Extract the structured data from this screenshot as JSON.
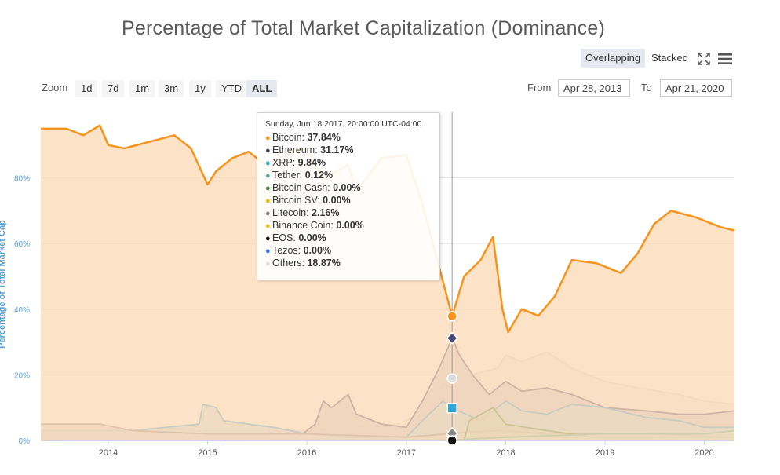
{
  "title": "Percentage of Total Market Capitalization (Dominance)",
  "view_modes": {
    "overlapping": "Overlapping",
    "stacked": "Stacked",
    "active": "Overlapping"
  },
  "icons": {
    "fullscreen": "fullscreen-icon",
    "menu": "menu-icon"
  },
  "zoom": {
    "label": "Zoom",
    "buttons": [
      "1d",
      "7d",
      "1m",
      "3m",
      "1y",
      "YTD",
      "ALL"
    ],
    "active": "ALL"
  },
  "range": {
    "from_label": "From",
    "from_value": "Apr 28, 2013",
    "to_label": "To",
    "to_value": "Apr 21, 2020"
  },
  "tooltip": {
    "header": "Sunday, Jun 18 2017, 20:00:00 UTC-04:00",
    "rows": [
      {
        "name": "Bitcoin",
        "value": "37.84%",
        "color": "#f7931a"
      },
      {
        "name": "Ethereum",
        "value": "31.17%",
        "color": "#454a75"
      },
      {
        "name": "XRP",
        "value": "9.84%",
        "color": "#2fa7da"
      },
      {
        "name": "Tether",
        "value": "0.12%",
        "color": "#50af95"
      },
      {
        "name": "Bitcoin Cash",
        "value": "0.00%",
        "color": "#3e8a3a"
      },
      {
        "name": "Bitcoin SV",
        "value": "0.00%",
        "color": "#eab300"
      },
      {
        "name": "Litecoin",
        "value": "2.16%",
        "color": "#888888"
      },
      {
        "name": "Binance Coin",
        "value": "0.00%",
        "color": "#f0b90b"
      },
      {
        "name": "EOS",
        "value": "0.00%",
        "color": "#111111"
      },
      {
        "name": "Tezos",
        "value": "0.00%",
        "color": "#2c7df7"
      },
      {
        "name": "Others",
        "value": "18.87%",
        "color": "#dddddd"
      }
    ]
  },
  "chart_data": {
    "type": "area",
    "mode": "overlapping",
    "x_type": "datetime",
    "xlim": [
      "2013-04-28",
      "2020-04-21"
    ],
    "ylim": [
      0,
      100
    ],
    "yticks": [
      0,
      20,
      40,
      60,
      80
    ],
    "ytick_labels": [
      "0%",
      "20%",
      "40%",
      "60%",
      "80%"
    ],
    "xticks": [
      "2014-01-01",
      "2015-01-01",
      "2016-01-01",
      "2017-01-01",
      "2018-01-01",
      "2019-01-01",
      "2020-01-01"
    ],
    "xtick_labels": [
      "2014",
      "2015",
      "2016",
      "2017",
      "2018",
      "2019",
      "2020"
    ],
    "ylabel": "Percentage of Total Market Cap",
    "grid": true,
    "crosshair_x": "2017-06-18",
    "series": [
      {
        "name": "Others",
        "color": "#dddddd",
        "fill": "#eeeeee",
        "points": [
          [
            "2013-04-28",
            4
          ],
          [
            "2013-12-01",
            4
          ],
          [
            "2014-04-01",
            3
          ],
          [
            "2014-08-01",
            4
          ],
          [
            "2015-01-01",
            3
          ],
          [
            "2015-06-01",
            3
          ],
          [
            "2016-01-01",
            3
          ],
          [
            "2016-06-01",
            4
          ],
          [
            "2016-12-01",
            5
          ],
          [
            "2017-03-15",
            9
          ],
          [
            "2017-05-15",
            17
          ],
          [
            "2017-06-18",
            18.87
          ],
          [
            "2017-09-01",
            20
          ],
          [
            "2017-12-01",
            22
          ],
          [
            "2018-01-01",
            26
          ],
          [
            "2018-03-01",
            24
          ],
          [
            "2018-06-01",
            27
          ],
          [
            "2018-09-01",
            22
          ],
          [
            "2019-01-01",
            18
          ],
          [
            "2019-05-01",
            16
          ],
          [
            "2019-10-01",
            14
          ],
          [
            "2020-01-01",
            12
          ],
          [
            "2020-04-21",
            11
          ]
        ]
      },
      {
        "name": "Ethereum",
        "color": "#454a75",
        "fill": "#c8c4d6",
        "points": [
          [
            "2015-08-07",
            0
          ],
          [
            "2015-12-01",
            1
          ],
          [
            "2016-02-01",
            5
          ],
          [
            "2016-03-01",
            12
          ],
          [
            "2016-04-01",
            10
          ],
          [
            "2016-06-01",
            14
          ],
          [
            "2016-07-01",
            8
          ],
          [
            "2016-10-01",
            5
          ],
          [
            "2017-01-01",
            4
          ],
          [
            "2017-03-01",
            12
          ],
          [
            "2017-05-01",
            22
          ],
          [
            "2017-06-18",
            31.17
          ],
          [
            "2017-07-15",
            26
          ],
          [
            "2017-09-01",
            20
          ],
          [
            "2017-11-01",
            14
          ],
          [
            "2018-01-01",
            18
          ],
          [
            "2018-03-01",
            15
          ],
          [
            "2018-06-01",
            16
          ],
          [
            "2018-09-01",
            14
          ],
          [
            "2019-01-01",
            10
          ],
          [
            "2019-06-01",
            9
          ],
          [
            "2019-10-01",
            8
          ],
          [
            "2020-01-01",
            8
          ],
          [
            "2020-04-21",
            9
          ]
        ]
      },
      {
        "name": "XRP",
        "color": "#2fa7da",
        "fill": "#b8dcea",
        "points": [
          [
            "2013-04-28",
            3
          ],
          [
            "2014-04-01",
            3
          ],
          [
            "2014-12-01",
            5
          ],
          [
            "2014-12-15",
            11
          ],
          [
            "2015-02-01",
            10
          ],
          [
            "2015-03-01",
            6
          ],
          [
            "2015-06-01",
            5
          ],
          [
            "2015-09-01",
            4
          ],
          [
            "2016-01-01",
            2
          ],
          [
            "2016-06-01",
            1
          ],
          [
            "2017-01-01",
            1
          ],
          [
            "2017-03-01",
            6
          ],
          [
            "2017-05-15",
            12
          ],
          [
            "2017-06-18",
            9.84
          ],
          [
            "2017-10-01",
            6
          ],
          [
            "2018-01-01",
            12
          ],
          [
            "2018-03-01",
            9
          ],
          [
            "2018-06-01",
            8
          ],
          [
            "2018-09-01",
            11
          ],
          [
            "2019-01-01",
            10
          ],
          [
            "2019-06-01",
            7
          ],
          [
            "2019-10-01",
            6
          ],
          [
            "2020-01-01",
            4
          ],
          [
            "2020-04-21",
            4
          ]
        ]
      },
      {
        "name": "Litecoin",
        "color": "#888888",
        "fill": "#d8d8d8",
        "points": [
          [
            "2013-04-28",
            5
          ],
          [
            "2013-12-01",
            5
          ],
          [
            "2014-04-01",
            3
          ],
          [
            "2015-01-01",
            2
          ],
          [
            "2016-01-01",
            2
          ],
          [
            "2017-01-01",
            1
          ],
          [
            "2017-06-18",
            2.16
          ],
          [
            "2017-12-01",
            3
          ],
          [
            "2018-06-01",
            2
          ],
          [
            "2019-06-01",
            2
          ],
          [
            "2020-04-21",
            1
          ]
        ]
      },
      {
        "name": "Bitcoin Cash",
        "color": "#3e8a3a",
        "fill": "#bcd6b8",
        "points": [
          [
            "2017-08-01",
            0
          ],
          [
            "2017-08-20",
            6
          ],
          [
            "2017-11-15",
            10
          ],
          [
            "2018-01-01",
            5
          ],
          [
            "2018-06-01",
            3
          ],
          [
            "2018-11-20",
            1
          ],
          [
            "2019-06-01",
            1
          ],
          [
            "2020-04-21",
            1
          ]
        ]
      },
      {
        "name": "Tether",
        "color": "#50af95",
        "fill": "#c4e4d8",
        "points": [
          [
            "2015-03-01",
            0
          ],
          [
            "2017-06-18",
            0.12
          ],
          [
            "2018-01-01",
            1
          ],
          [
            "2019-01-01",
            2
          ],
          [
            "2020-01-01",
            2
          ],
          [
            "2020-04-21",
            3
          ]
        ]
      },
      {
        "name": "Bitcoin",
        "color": "#f7931a",
        "fill": "#fbd8b4",
        "points": [
          [
            "2013-04-28",
            95
          ],
          [
            "2013-08-01",
            95
          ],
          [
            "2013-10-01",
            93
          ],
          [
            "2013-12-01",
            96
          ],
          [
            "2014-01-01",
            90
          ],
          [
            "2014-03-01",
            89
          ],
          [
            "2014-06-01",
            91
          ],
          [
            "2014-09-01",
            93
          ],
          [
            "2014-11-01",
            89
          ],
          [
            "2015-01-01",
            78
          ],
          [
            "2015-02-01",
            82
          ],
          [
            "2015-04-01",
            86
          ],
          [
            "2015-06-01",
            88
          ],
          [
            "2015-08-01",
            84
          ],
          [
            "2015-11-01",
            88
          ],
          [
            "2016-01-01",
            89
          ],
          [
            "2016-03-01",
            80
          ],
          [
            "2016-06-01",
            84
          ],
          [
            "2016-07-01",
            76
          ],
          [
            "2016-10-01",
            86
          ],
          [
            "2017-01-01",
            87
          ],
          [
            "2017-03-01",
            72
          ],
          [
            "2017-04-15",
            58
          ],
          [
            "2017-06-18",
            37.84
          ],
          [
            "2017-08-01",
            50
          ],
          [
            "2017-10-01",
            55
          ],
          [
            "2017-11-15",
            62
          ],
          [
            "2017-12-20",
            40
          ],
          [
            "2018-01-10",
            33
          ],
          [
            "2018-03-01",
            40
          ],
          [
            "2018-05-01",
            38
          ],
          [
            "2018-07-01",
            44
          ],
          [
            "2018-09-01",
            55
          ],
          [
            "2018-12-01",
            54
          ],
          [
            "2019-03-01",
            51
          ],
          [
            "2019-05-01",
            57
          ],
          [
            "2019-07-01",
            66
          ],
          [
            "2019-09-01",
            70
          ],
          [
            "2019-12-01",
            68
          ],
          [
            "2020-03-01",
            65
          ],
          [
            "2020-04-21",
            64
          ]
        ]
      }
    ]
  }
}
